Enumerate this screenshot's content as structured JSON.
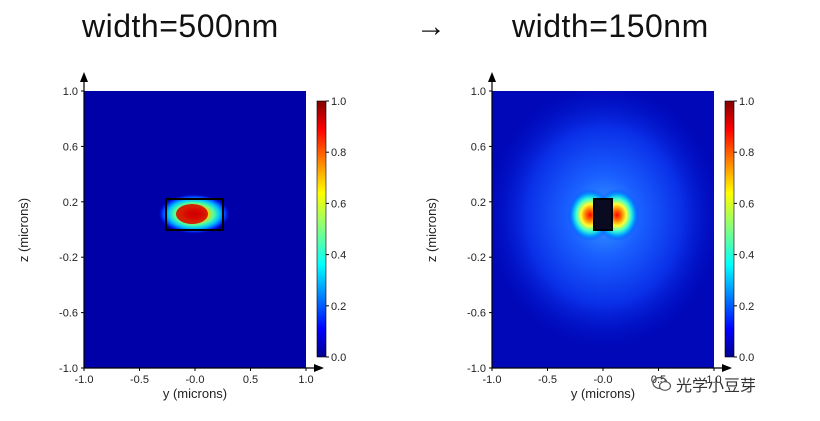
{
  "titles": {
    "left": "width=500nm",
    "arrow": "→",
    "right": "width=150nm"
  },
  "watermark": {
    "text": "光学小豆芽"
  },
  "chart_data": [
    {
      "type": "heatmap",
      "title": "width=500nm",
      "xlabel": "y (microns)",
      "ylabel": "z (microns)",
      "xlim": [
        -1.0,
        1.0
      ],
      "ylim": [
        -1.0,
        1.0
      ],
      "x_ticks": [
        "-1.0",
        "-0.5",
        "-0.0",
        "0.5",
        "1.0"
      ],
      "y_ticks": [
        "1.0",
        "0.6",
        "0.2",
        "-0.2",
        "-0.6",
        "-1.0"
      ],
      "colorbar": {
        "range": [
          0.0,
          1.0
        ],
        "ticks": [
          "1.0",
          "0.8",
          "0.6",
          "0.4",
          "0.2",
          "0.0"
        ],
        "colormap": "jet"
      },
      "waveguide": {
        "y_range": [
          -0.25,
          0.25
        ],
        "z_range": [
          0.11,
          0.33
        ]
      },
      "field_peak": {
        "y": 0.0,
        "z": 0.22,
        "value": 1.0
      }
    },
    {
      "type": "heatmap",
      "title": "width=150nm",
      "xlabel": "y (microns)",
      "ylabel": "z (microns)",
      "xlim": [
        -1.0,
        1.0
      ],
      "ylim": [
        -1.0,
        1.0
      ],
      "x_ticks": [
        "-1.0",
        "-0.5",
        "-0.0",
        "0.5",
        "1.0"
      ],
      "y_ticks": [
        "1.0",
        "0.6",
        "0.2",
        "-0.2",
        "-0.6",
        "-1.0"
      ],
      "colorbar": {
        "range": [
          0.0,
          1.0
        ],
        "ticks": [
          "1.0",
          "0.8",
          "0.6",
          "0.4",
          "0.2",
          "0.0"
        ],
        "colormap": "jet"
      },
      "waveguide": {
        "y_range": [
          -0.075,
          0.075
        ],
        "z_range": [
          0.11,
          0.33
        ]
      },
      "field_peak": {
        "y": 0.0,
        "z": 0.22,
        "value": 1.0
      }
    }
  ]
}
